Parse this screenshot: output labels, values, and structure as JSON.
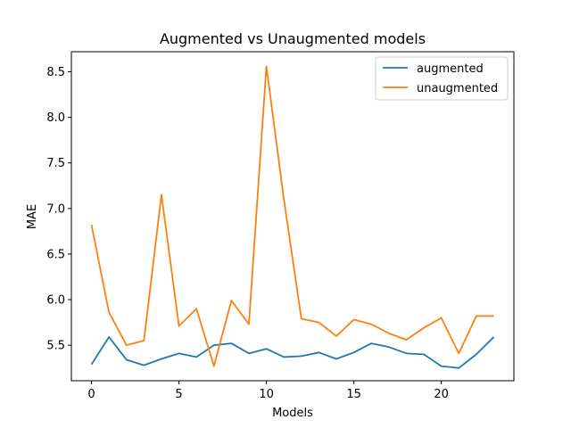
{
  "chart_data": {
    "type": "line",
    "title": "Augmented vs Unaugmented models",
    "xlabel": "Models",
    "ylabel": "MAE",
    "xlim": [
      -1.15,
      24.15
    ],
    "ylim": [
      5.11,
      8.72
    ],
    "xticks": [
      0,
      5,
      10,
      15,
      20
    ],
    "yticks": [
      5.5,
      6.0,
      6.5,
      7.0,
      7.5,
      8.0,
      8.5
    ],
    "xtick_labels": [
      "0",
      "5",
      "10",
      "15",
      "20"
    ],
    "ytick_labels": [
      "5.5",
      "6.0",
      "6.5",
      "7.0",
      "7.5",
      "8.0",
      "8.5"
    ],
    "grid": false,
    "legend_position": "upper right",
    "x": [
      0,
      1,
      2,
      3,
      4,
      5,
      6,
      7,
      8,
      9,
      10,
      11,
      12,
      13,
      14,
      15,
      16,
      17,
      18,
      19,
      20,
      21,
      22,
      23
    ],
    "series": [
      {
        "name": "augmented",
        "color": "#1f77b4",
        "values": [
          5.29,
          5.59,
          5.34,
          5.28,
          5.35,
          5.41,
          5.37,
          5.5,
          5.52,
          5.41,
          5.46,
          5.37,
          5.38,
          5.42,
          5.35,
          5.42,
          5.52,
          5.48,
          5.41,
          5.4,
          5.27,
          5.25,
          5.4,
          5.59
        ]
      },
      {
        "name": "unaugmented",
        "color": "#ff7f0e",
        "values": [
          6.82,
          5.86,
          5.5,
          5.55,
          7.15,
          5.71,
          5.9,
          5.27,
          5.99,
          5.73,
          8.56,
          7.1,
          5.79,
          5.75,
          5.6,
          5.78,
          5.73,
          5.63,
          5.56,
          5.69,
          5.8,
          5.41,
          5.82,
          5.82
        ]
      }
    ]
  }
}
